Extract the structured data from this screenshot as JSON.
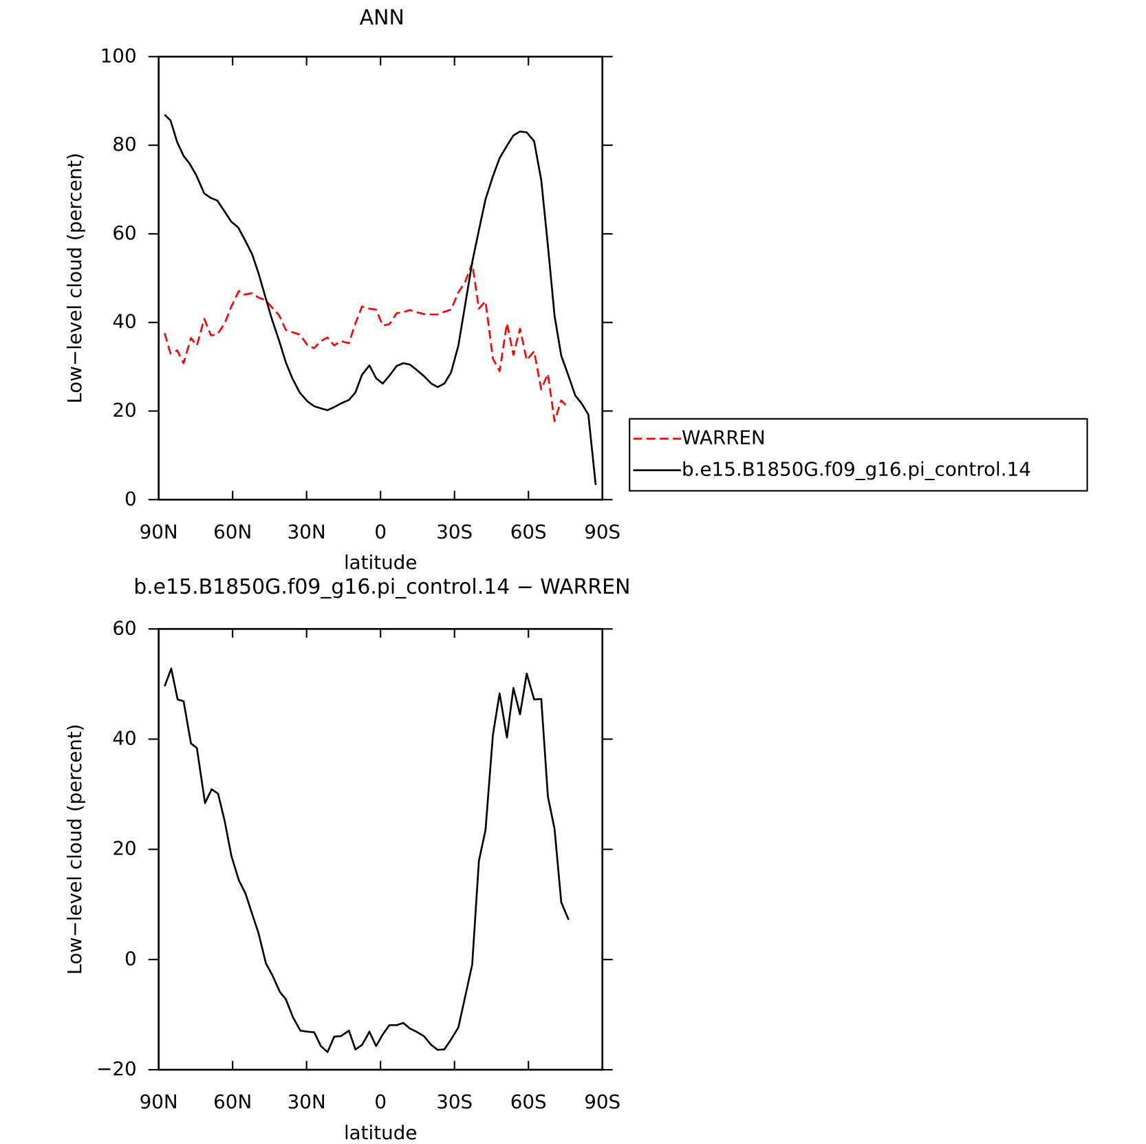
{
  "chart_data": [
    {
      "type": "line",
      "title": "ANN",
      "xlabel": "latitude",
      "ylabel": "Low−level cloud (percent)",
      "xlim": [
        90,
        -90
      ],
      "xticks": [
        {
          "value": 90,
          "label": "90N"
        },
        {
          "value": 60,
          "label": "60N"
        },
        {
          "value": 30,
          "label": "30N"
        },
        0,
        {
          "value": -30,
          "label": "30S"
        },
        {
          "value": -60,
          "label": "60S"
        },
        {
          "value": -90,
          "label": "90S"
        }
      ],
      "ylim": [
        0,
        100
      ],
      "yticks": [
        0,
        20,
        40,
        60,
        80,
        100
      ],
      "legend": "right",
      "series": [
        {
          "name": "WARREN",
          "color": "#ff0000",
          "line_style": "dashed",
          "x": [
            87.6,
            85.2,
            82.5,
            79.9,
            76.9,
            74.5,
            71.5,
            68.8,
            66.2,
            63.2,
            60.5,
            57.5,
            55.1,
            52.1,
            49.5,
            46.8,
            44.1,
            41.1,
            38.4,
            35.8,
            32.8,
            29.5,
            26.9,
            24.2,
            21.5,
            18.8,
            16.1,
            12.8,
            10.2,
            7.5,
            4.5,
            1.8,
            -0.9,
            -3.6,
            -6.6,
            -9.2,
            -11.9,
            -14.6,
            -17.6,
            -20.6,
            -23.2,
            -25.9,
            -28.6,
            -31.6,
            -34.3,
            -37.2,
            -39.9,
            -42.6,
            -45.6,
            -48.3,
            -51.3,
            -53.9,
            -56.6,
            -59.3,
            -62.3,
            -65.2,
            -67.9,
            -70.6,
            -73.3,
            -76.3
          ],
          "values": [
            37.6,
            33.0,
            33.7,
            30.8,
            36.5,
            34.8,
            40.8,
            37.1,
            37.3,
            39.8,
            43.6,
            47.1,
            46.3,
            46.6,
            45.6,
            45.1,
            43.4,
            41.6,
            38.3,
            37.8,
            37.3,
            34.8,
            34.2,
            35.8,
            36.6,
            34.8,
            35.8,
            35.3,
            39.8,
            43.6,
            43.1,
            42.9,
            39.3,
            39.6,
            42.1,
            42.3,
            42.8,
            42.3,
            41.9,
            41.8,
            41.8,
            42.4,
            42.9,
            46.8,
            49.1,
            53.4,
            43.1,
            44.8,
            31.8,
            29.0,
            39.8,
            32.7,
            38.6,
            31.5,
            33.5,
            24.9,
            28.4,
            17.7,
            22.4,
            20.7
          ]
        },
        {
          "name": "b.e15.B1850G.f09_g16.pi_control.14",
          "color": "#000000",
          "line_style": "solid",
          "x": [
            87.6,
            85.2,
            82.5,
            79.9,
            77.5,
            74.8,
            71.5,
            68.8,
            66.2,
            63.2,
            60.5,
            57.8,
            55.1,
            52.1,
            49.5,
            46.8,
            44.1,
            41.1,
            38.4,
            35.8,
            32.8,
            29.5,
            26.9,
            24.2,
            21.5,
            18.8,
            16.1,
            12.8,
            10.2,
            7.5,
            4.5,
            1.8,
            -0.9,
            -3.6,
            -6.6,
            -9.2,
            -11.9,
            -14.6,
            -17.6,
            -20.6,
            -23.2,
            -25.9,
            -28.6,
            -31.6,
            -34.3,
            -37.2,
            -39.9,
            -42.6,
            -45.6,
            -48.3,
            -51.3,
            -53.9,
            -56.6,
            -59.3,
            -62.3,
            -65.2,
            -67.9,
            -70.6,
            -73.3,
            -76.3,
            -79.0,
            -81.6,
            -84.3,
            -87.3
          ],
          "values": [
            86.9,
            85.6,
            80.7,
            77.6,
            75.9,
            73.3,
            69.1,
            68.1,
            67.5,
            65.0,
            62.7,
            61.5,
            58.7,
            55.4,
            51.1,
            45.9,
            40.8,
            35.8,
            31.0,
            27.4,
            24.2,
            22.1,
            21.1,
            20.6,
            20.2,
            20.9,
            21.7,
            22.5,
            24.2,
            28.2,
            30.3,
            27.4,
            26.2,
            28.0,
            30.2,
            30.8,
            30.5,
            29.3,
            27.9,
            26.2,
            25.4,
            26.2,
            28.7,
            34.8,
            43.9,
            53.6,
            60.8,
            67.8,
            73.0,
            77.1,
            79.9,
            82.2,
            83.1,
            82.9,
            80.9,
            72.1,
            57.4,
            41.5,
            32.5,
            27.9,
            23.5,
            21.7,
            19.2,
            3.3
          ]
        }
      ]
    },
    {
      "type": "line",
      "title": "b.e15.B1850G.f09_g16.pi_control.14 − WARREN",
      "xlabel": "latitude",
      "ylabel": "Low−level cloud (percent)",
      "xlim": [
        90,
        -90
      ],
      "xticks": [
        {
          "value": 90,
          "label": "90N"
        },
        {
          "value": 60,
          "label": "60N"
        },
        {
          "value": 30,
          "label": "30N"
        },
        0,
        {
          "value": -30,
          "label": "30S"
        },
        {
          "value": -60,
          "label": "60S"
        },
        {
          "value": -90,
          "label": "90S"
        }
      ],
      "ylim": [
        -20,
        60
      ],
      "yticks": [
        {
          "value": -20,
          "label": "−20"
        },
        0,
        20,
        40,
        60
      ],
      "series": [
        {
          "color": "#000000",
          "line_style": "solid",
          "x": [
            87.6,
            84.9,
            82.3,
            79.9,
            76.9,
            74.5,
            71.2,
            68.5,
            65.9,
            63.2,
            60.5,
            57.5,
            54.8,
            52.1,
            49.5,
            46.5,
            43.8,
            40.8,
            38.4,
            35.5,
            32.5,
            29.5,
            26.9,
            24.2,
            21.5,
            18.8,
            16.1,
            12.8,
            10.2,
            7.5,
            4.5,
            1.8,
            -0.9,
            -3.6,
            -6.6,
            -9.2,
            -11.9,
            -14.6,
            -17.6,
            -20.6,
            -23.2,
            -25.9,
            -28.6,
            -31.6,
            -34.3,
            -37.2,
            -39.9,
            -42.6,
            -45.6,
            -48.3,
            -51.3,
            -53.9,
            -56.6,
            -59.3,
            -62.3,
            -65.2,
            -67.9,
            -70.6,
            -73.3,
            -76.3
          ],
          "values": [
            49.6,
            52.8,
            47.2,
            46.9,
            39.2,
            38.4,
            28.4,
            30.9,
            30.1,
            25.1,
            18.8,
            14.4,
            12.0,
            8.3,
            4.8,
            -0.7,
            -2.9,
            -5.9,
            -7.2,
            -10.5,
            -12.9,
            -13.1,
            -13.2,
            -15.7,
            -16.8,
            -14.0,
            -13.9,
            -12.9,
            -16.3,
            -15.5,
            -13.1,
            -15.7,
            -13.6,
            -11.9,
            -11.9,
            -11.5,
            -12.5,
            -13.1,
            -13.9,
            -15.5,
            -16.4,
            -16.3,
            -14.5,
            -12.3,
            -6.8,
            -0.9,
            17.9,
            23.5,
            40.8,
            48.3,
            40.3,
            49.3,
            44.5,
            51.9,
            47.2,
            47.3,
            29.6,
            23.7,
            10.4,
            7.2
          ]
        }
      ]
    }
  ]
}
